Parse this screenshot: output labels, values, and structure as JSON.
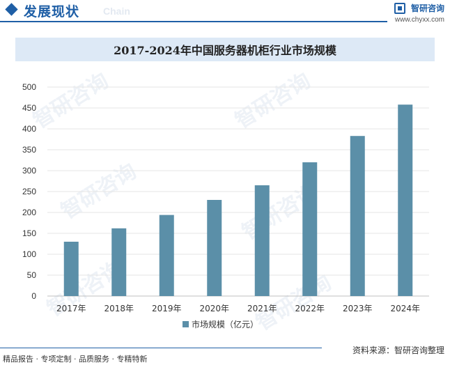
{
  "header": {
    "section_title": "发展现状",
    "ghost_text": "Chain",
    "brand_name": "智研咨询",
    "brand_url": "www.chyxx.com"
  },
  "watermark_text": "智研咨询",
  "chart_data": {
    "type": "bar",
    "title": "2017-2024年中国服务器机柜行业市场规模",
    "categories": [
      "2017年",
      "2018年",
      "2019年",
      "2020年",
      "2021年",
      "2022年",
      "2023年",
      "2024年"
    ],
    "series": [
      {
        "name": "市场规模（亿元）",
        "values": [
          130,
          162,
          194,
          230,
          265,
          320,
          383,
          458
        ],
        "color": "#5b8fa8"
      }
    ],
    "ylim": [
      0,
      500
    ],
    "yticks": [
      0,
      50,
      100,
      150,
      200,
      250,
      300,
      350,
      400,
      450,
      500
    ],
    "grid": true,
    "legend": "bottom"
  },
  "footer": {
    "left_text": "精品报告 · 专项定制 · 品质服务 · 专精特新",
    "source_text": "资料来源：智研咨询整理"
  }
}
